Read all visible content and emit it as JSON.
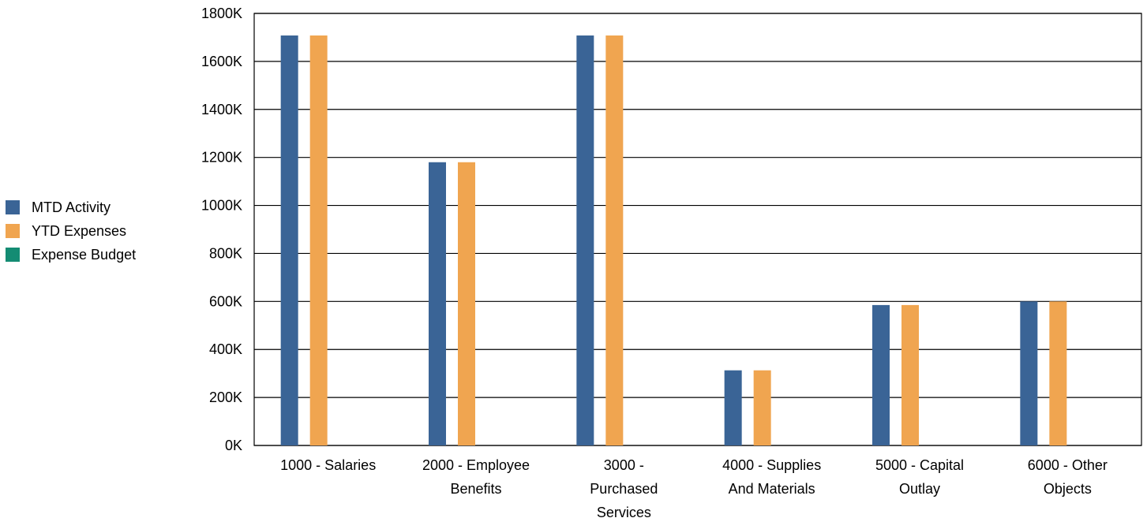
{
  "chart_data": {
    "type": "bar",
    "categories": [
      [
        "1000 - Salaries"
      ],
      [
        "2000 - Employee",
        "Benefits"
      ],
      [
        "3000 -",
        "Purchased",
        "Services"
      ],
      [
        "4000 - Supplies",
        "And Materials"
      ],
      [
        "5000 - Capital",
        "Outlay"
      ],
      [
        "6000 - Other",
        "Objects"
      ]
    ],
    "series": [
      {
        "name": "MTD Activity",
        "color": "#3a6496",
        "values": [
          1708,
          1180,
          1708,
          313,
          585,
          600
        ]
      },
      {
        "name": "YTD Expenses",
        "color": "#f0a550",
        "values": [
          1708,
          1180,
          1708,
          313,
          585,
          600
        ]
      },
      {
        "name": "Expense Budget",
        "color": "#148c73",
        "values": [
          0,
          0,
          0,
          0,
          0,
          0
        ]
      }
    ],
    "ylim": [
      0,
      1800
    ],
    "yticks": [
      "0K",
      "200K",
      "400K",
      "600K",
      "800K",
      "1000K",
      "1200K",
      "1400K",
      "1600K",
      "1800K"
    ],
    "legend_position": "left",
    "grid": true
  }
}
